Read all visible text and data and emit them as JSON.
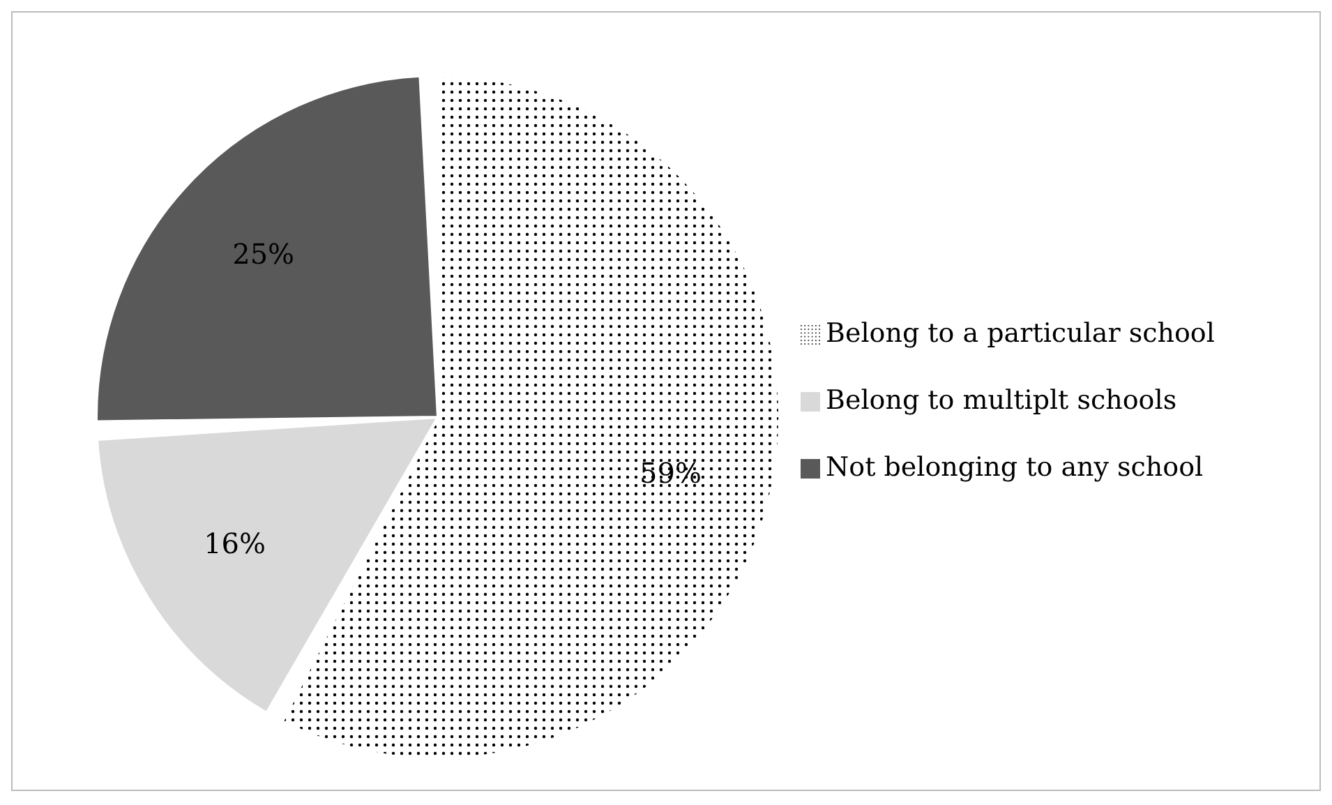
{
  "chart_data": {
    "type": "pie",
    "categories": [
      "Belong to a particular school",
      "Belong to multiplt schools",
      "Not belonging to any school"
    ],
    "values": [
      59,
      16,
      25
    ],
    "colors": [
      "#ffffff",
      "#d9d9d9",
      "#595959"
    ],
    "value_labels": [
      "59%",
      "16%",
      "25%"
    ],
    "legend": "right"
  }
}
